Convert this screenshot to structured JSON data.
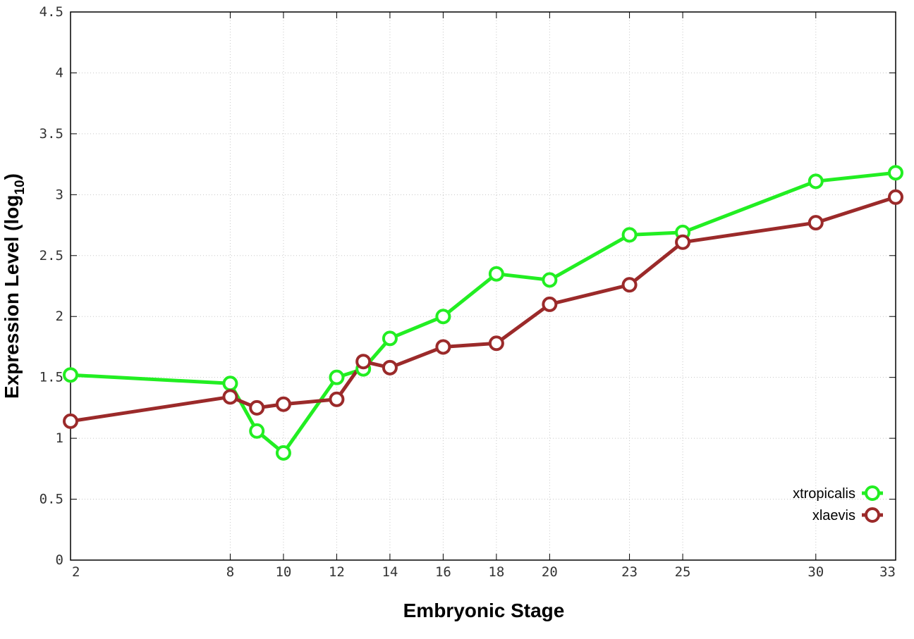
{
  "chart_data": {
    "type": "line",
    "xlabel": "Embryonic Stage",
    "ylabel": "Expression Level (log",
    "ylabel_sub": "10",
    "ylabel_close": ")",
    "x_ticks": [
      2,
      8,
      10,
      12,
      14,
      16,
      18,
      20,
      23,
      25,
      30,
      33
    ],
    "y_ticks": [
      "0",
      "0.5",
      "1",
      "1.5",
      "2",
      "2.5",
      "3",
      "3.5",
      "4",
      "4.5"
    ],
    "xlim": [
      2,
      33
    ],
    "ylim": [
      0,
      4.5
    ],
    "grid": true,
    "legend_position": "bottom-right",
    "series": [
      {
        "name": "xtropicalis",
        "color": "#22ee22",
        "x": [
          2,
          8,
          9,
          10,
          12,
          13,
          14,
          16,
          18,
          20,
          23,
          25,
          30,
          33
        ],
        "y": [
          1.52,
          1.45,
          1.06,
          0.88,
          1.5,
          1.57,
          1.82,
          2.0,
          2.35,
          2.3,
          2.67,
          2.69,
          3.11,
          3.18
        ]
      },
      {
        "name": "xlaevis",
        "color": "#9b2a2a",
        "x": [
          2,
          8,
          9,
          10,
          12,
          13,
          14,
          16,
          18,
          20,
          23,
          25,
          30,
          33
        ],
        "y": [
          1.14,
          1.34,
          1.25,
          1.28,
          1.32,
          1.63,
          1.58,
          1.75,
          1.78,
          2.1,
          2.26,
          2.61,
          2.77,
          2.98
        ]
      }
    ]
  }
}
